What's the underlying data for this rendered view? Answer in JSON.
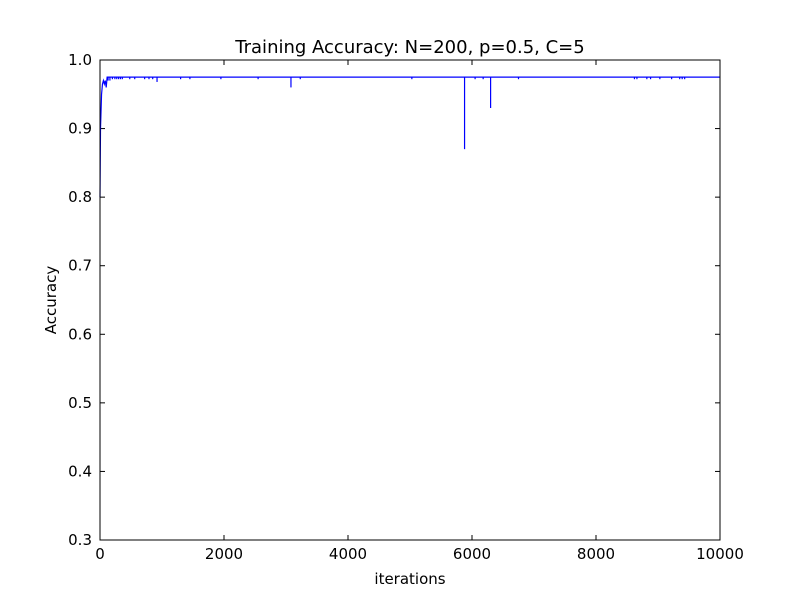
{
  "chart_data": {
    "type": "line",
    "title": "Training Accuracy: N=200, p=0.5, C=5",
    "xlabel": "iterations",
    "ylabel": "Accuracy",
    "xlim": [
      0,
      10000
    ],
    "ylim": [
      0.3,
      1.0
    ],
    "xticks": [
      0,
      2000,
      4000,
      6000,
      8000,
      10000
    ],
    "yticks": [
      0.3,
      0.4,
      0.5,
      0.6,
      0.7,
      0.8,
      0.9,
      1.0
    ],
    "xtick_labels": [
      "0",
      "2000",
      "4000",
      "6000",
      "8000",
      "10000"
    ],
    "ytick_labels": [
      "0.3",
      "0.4",
      "0.5",
      "0.6",
      "0.7",
      "0.8",
      "0.9",
      "1.0"
    ],
    "color": "#0000ff",
    "series": [
      {
        "name": "accuracy",
        "baseline": 0.975,
        "x_end": 10000,
        "early_points": [
          [
            0,
            0.8
          ],
          [
            8,
            0.9
          ],
          [
            15,
            0.92
          ],
          [
            25,
            0.95
          ],
          [
            40,
            0.965
          ],
          [
            55,
            0.97
          ],
          [
            70,
            0.965
          ],
          [
            85,
            0.97
          ],
          [
            100,
            0.96
          ],
          [
            115,
            0.975
          ]
        ],
        "dips": [
          [
            130,
            0.97
          ],
          [
            160,
            0.97
          ],
          [
            200,
            0.972
          ],
          [
            240,
            0.972
          ],
          [
            270,
            0.972
          ],
          [
            300,
            0.972
          ],
          [
            330,
            0.972
          ],
          [
            360,
            0.972
          ],
          [
            480,
            0.972
          ],
          [
            560,
            0.972
          ],
          [
            720,
            0.972
          ],
          [
            790,
            0.972
          ],
          [
            850,
            0.972
          ],
          [
            920,
            0.968
          ],
          [
            1300,
            0.972
          ],
          [
            1450,
            0.972
          ],
          [
            1950,
            0.972
          ],
          [
            2550,
            0.972
          ],
          [
            3080,
            0.96
          ],
          [
            3230,
            0.972
          ],
          [
            5030,
            0.972
          ],
          [
            5880,
            0.87
          ],
          [
            6050,
            0.972
          ],
          [
            6180,
            0.972
          ],
          [
            6300,
            0.93
          ],
          [
            6750,
            0.972
          ],
          [
            8620,
            0.972
          ],
          [
            8660,
            0.972
          ],
          [
            8820,
            0.972
          ],
          [
            8880,
            0.972
          ],
          [
            9030,
            0.972
          ],
          [
            9220,
            0.972
          ],
          [
            9350,
            0.972
          ],
          [
            9390,
            0.972
          ],
          [
            9430,
            0.972
          ]
        ]
      }
    ]
  }
}
